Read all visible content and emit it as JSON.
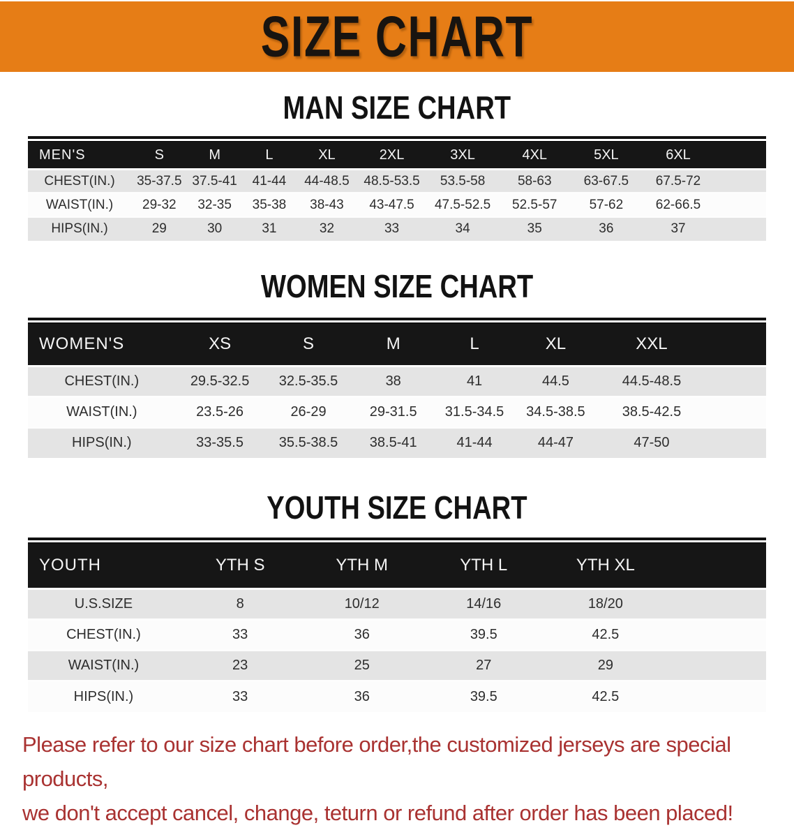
{
  "banner": {
    "title": "SIZE CHART",
    "bg_color": "#e67d16",
    "text_color": "#181410"
  },
  "tables": [
    {
      "id": "men",
      "heading": "MAN SIZE CHART",
      "header": {
        "label": "MEN'S",
        "sizes": [
          "S",
          "M",
          "L",
          "XL",
          "2XL",
          "3XL",
          "4XL",
          "5XL",
          "6XL"
        ]
      },
      "rows": [
        {
          "label": "CHEST(IN.)",
          "values": [
            "35-37.5",
            "37.5-41",
            "41-44",
            "44-48.5",
            "48.5-53.5",
            "53.5-58",
            "58-63",
            "63-67.5",
            "67.5-72"
          ]
        },
        {
          "label": "WAIST(IN.)",
          "values": [
            "29-32",
            "32-35",
            "35-38",
            "38-43",
            "43-47.5",
            "47.5-52.5",
            "52.5-57",
            "57-62",
            "62-66.5"
          ]
        },
        {
          "label": "HIPS(IN.)",
          "values": [
            "29",
            "30",
            "31",
            "32",
            "33",
            "34",
            "35",
            "36",
            "37"
          ]
        }
      ]
    },
    {
      "id": "women",
      "heading": "WOMEN SIZE CHART",
      "header": {
        "label": "WOMEN'S",
        "sizes": [
          "XS",
          "S",
          "M",
          "L",
          "XL",
          "XXL"
        ]
      },
      "rows": [
        {
          "label": "CHEST(IN.)",
          "values": [
            "29.5-32.5",
            "32.5-35.5",
            "38",
            "41",
            "44.5",
            "44.5-48.5"
          ]
        },
        {
          "label": "WAIST(IN.)",
          "values": [
            "23.5-26",
            "26-29",
            "29-31.5",
            "31.5-34.5",
            "34.5-38.5",
            "38.5-42.5"
          ]
        },
        {
          "label": "HIPS(IN.)",
          "values": [
            "33-35.5",
            "35.5-38.5",
            "38.5-41",
            "41-44",
            "44-47",
            "47-50"
          ]
        }
      ]
    },
    {
      "id": "youth",
      "heading": "YOUTH SIZE CHART",
      "header": {
        "label": "YOUTH",
        "sizes": [
          "YTH S",
          "YTH M",
          "YTH L",
          "YTH XL"
        ]
      },
      "rows": [
        {
          "label": "U.S.SIZE",
          "values": [
            "8",
            "10/12",
            "14/16",
            "18/20"
          ]
        },
        {
          "label": "CHEST(IN.)",
          "values": [
            "33",
            "36",
            "39.5",
            "42.5"
          ]
        },
        {
          "label": "WAIST(IN.)",
          "values": [
            "23",
            "25",
            "27",
            "29"
          ]
        },
        {
          "label": "HIPS(IN.)",
          "values": [
            "33",
            "36",
            "39.5",
            "42.5"
          ]
        }
      ]
    }
  ],
  "notice": {
    "color": "#a93231",
    "lines": [
      "Please refer to our size chart before order,the customized jerseys are special products,",
      "we don't accept cancel, change, teturn or refund after order has been placed!"
    ]
  }
}
